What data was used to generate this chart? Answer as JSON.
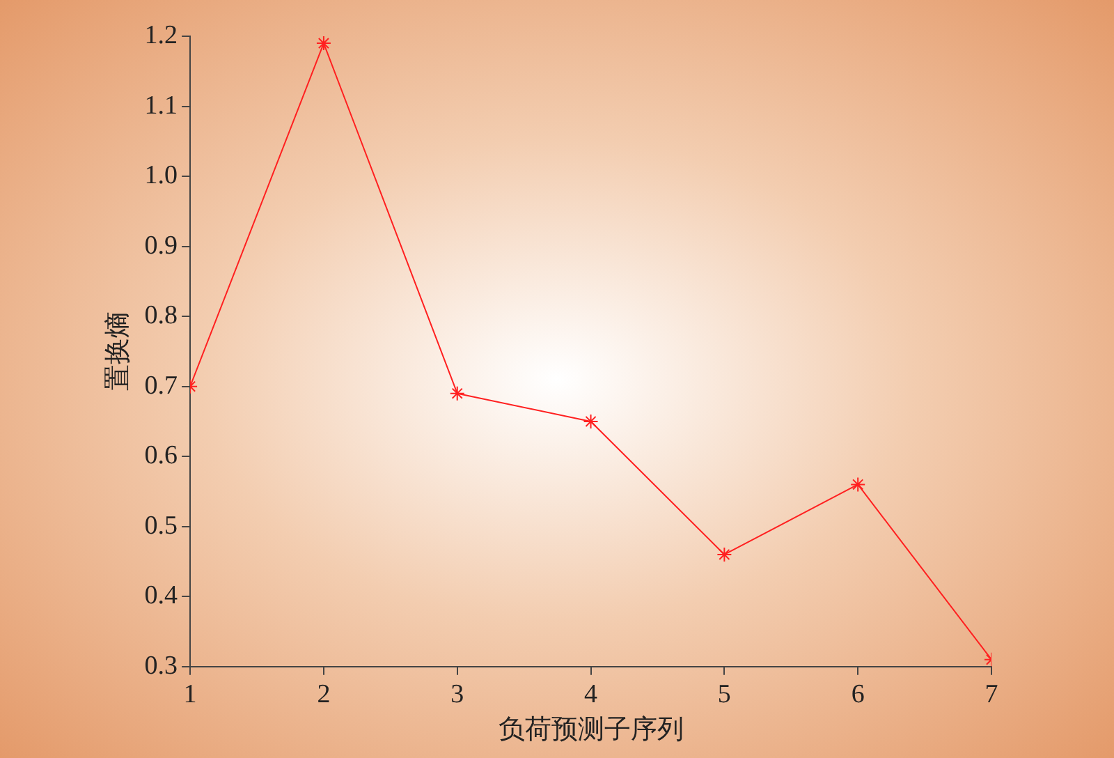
{
  "chart_data": {
    "type": "line",
    "xlabel": "负荷预测子序列",
    "ylabel": "置换熵",
    "x": [
      1,
      2,
      3,
      4,
      5,
      6,
      7
    ],
    "series": [
      {
        "color": "#ff2020",
        "values": [
          0.7,
          1.19,
          0.69,
          0.65,
          0.46,
          0.56,
          0.31
        ]
      }
    ],
    "xlim": [
      1,
      7
    ],
    "xticks": [
      1,
      2,
      3,
      4,
      5,
      6,
      7
    ],
    "ylim": [
      0.3,
      1.2
    ],
    "yticks": [
      0.3,
      0.4,
      0.5,
      0.6,
      0.7,
      0.8,
      0.9,
      {
        "value": 1,
        "label": "1.0"
      },
      1.1,
      1.2
    ],
    "grid": false,
    "legend": false,
    "marker": "cross",
    "line_style": "solid"
  }
}
